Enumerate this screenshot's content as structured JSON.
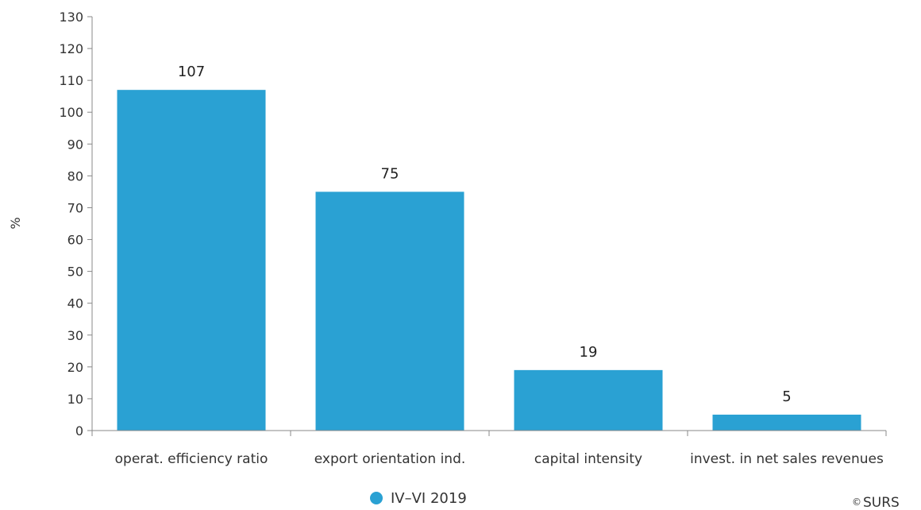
{
  "chart_data": {
    "type": "bar",
    "categories": [
      "operat. efficiency ratio",
      "export orientation ind.",
      "capital intensity",
      "invest. in net sales revenues"
    ],
    "series": [
      {
        "name": "IV–VI 2019",
        "values": [
          107,
          75,
          19,
          5
        ],
        "color": "#2aa1d3"
      }
    ],
    "data_labels": [
      "107",
      "75",
      "19",
      "5"
    ],
    "ylabel": "%",
    "ylim": [
      0,
      130
    ],
    "yticks": [
      0,
      10,
      20,
      30,
      40,
      50,
      60,
      70,
      80,
      90,
      100,
      110,
      120,
      130
    ],
    "grid": false,
    "legend_position": "bottom"
  },
  "credit": {
    "symbol": "©",
    "text": "SURS"
  }
}
